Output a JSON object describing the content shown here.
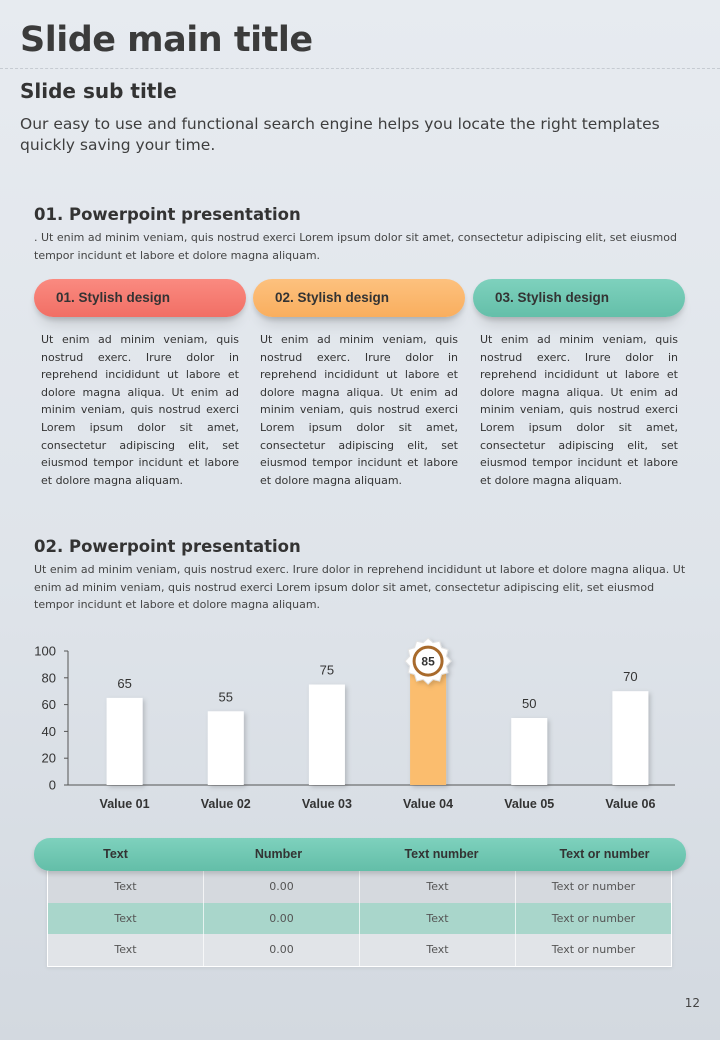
{
  "slide": {
    "main_title": "Slide main title",
    "sub_title": "Slide sub title",
    "intro": "Our easy to use and functional search engine helps you locate the right templates quickly saving your time.",
    "page_number": "12"
  },
  "section1": {
    "title": "01. Powerpoint presentation",
    "body": ". Ut enim ad minim veniam, quis nostrud exerci  Lorem ipsum dolor sit amet, consectetur adipiscing elit, set eiusmod tempor incidunt et labore et dolore magna aliquam.",
    "cards": [
      {
        "label": "01. Stylish design",
        "text": "Ut enim ad minim veniam, quis nostrud exerc. Irure dolor in reprehend incididunt ut labore et dolore magna aliqua. Ut enim ad minim veniam, quis nostrud exerci Lorem ipsum dolor sit amet, consectetur adipiscing elit, set eiusmod tempor incidunt et labore et dolore magna aliquam."
      },
      {
        "label": "02. Stylish design",
        "text": "Ut enim ad minim veniam, quis nostrud exerc. Irure dolor in reprehend incididunt ut labore et dolore magna aliqua. Ut enim ad minim veniam, quis nostrud exerci Lorem ipsum dolor sit amet, consectetur adipiscing elit, set eiusmod tempor incidunt et labore et dolore magna aliquam."
      },
      {
        "label": "03. Stylish design",
        "text": "Ut enim ad minim veniam, quis nostrud exerc. Irure dolor in reprehend incididunt ut labore et dolore magna aliqua. Ut enim ad minim veniam, quis nostrud exerci Lorem ipsum dolor sit amet, consectetur adipiscing elit, set eiusmod tempor incidunt et labore et dolore magna aliquam."
      }
    ]
  },
  "section2": {
    "title": "02. Powerpoint presentation",
    "body": "Ut enim ad minim veniam, quis nostrud exerc. Irure dolor in reprehend incididunt ut labore et dolore magna aliqua. Ut enim ad minim veniam, quis nostrud exerci  Lorem ipsum dolor sit amet, consectetur adipiscing elit, set eiusmod tempor incidunt et labore et dolore magna aliquam."
  },
  "chart_data": {
    "type": "bar",
    "categories": [
      "Value 01",
      "Value 02",
      "Value 03",
      "Value 04",
      "Value 05",
      "Value 06"
    ],
    "values": [
      65,
      55,
      75,
      85,
      50,
      70
    ],
    "highlight_index": 3,
    "ylim": [
      0,
      100
    ],
    "yticks": [
      0,
      20,
      40,
      60,
      80,
      100
    ],
    "title": "",
    "xlabel": "",
    "ylabel": "",
    "grid": false,
    "colors": {
      "bar": "#ffffff",
      "highlight": "#fbbd6e",
      "axis": "#555555",
      "gear": "#ffffff",
      "gear_ring": "#a86a2c"
    }
  },
  "table": {
    "headers": [
      "Text",
      "Number",
      "Text number",
      "Text or number"
    ],
    "rows": [
      [
        "Text",
        "0.00",
        "Text",
        "Text or number"
      ],
      [
        "Text",
        "0.00",
        "Text",
        "Text or number"
      ],
      [
        "Text",
        "0.00",
        "Text",
        "Text or number"
      ]
    ]
  },
  "colors": {
    "red": "#f47a70",
    "orange": "#fbb866",
    "teal": "#6fc8b3"
  }
}
